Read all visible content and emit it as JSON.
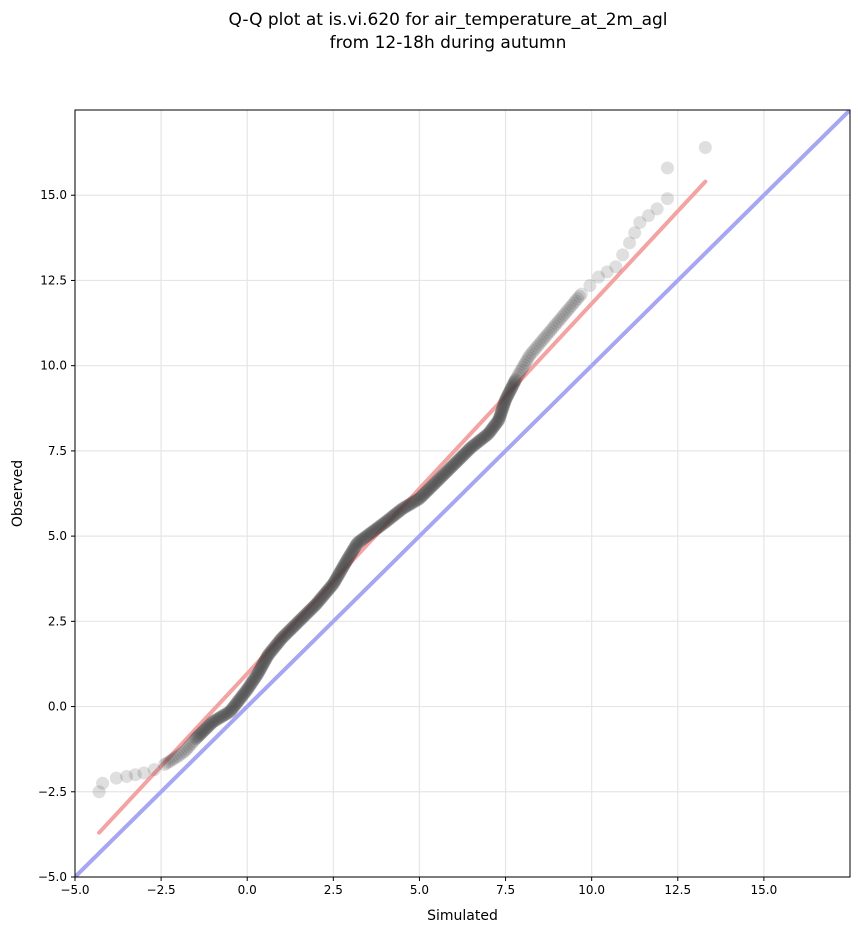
{
  "chart_data": {
    "type": "scatter",
    "title_lines": [
      "Q-Q plot at is.vi.620 for air_temperature_at_2m_agl",
      "from 12-18h during autumn"
    ],
    "xlabel": "Simulated",
    "ylabel": "Observed",
    "xlim": [
      -5.0,
      17.5
    ],
    "ylim": [
      -5.0,
      17.5
    ],
    "xticks": [
      -5.0,
      -2.5,
      0.0,
      2.5,
      5.0,
      7.5,
      10.0,
      12.5,
      15.0
    ],
    "xtick_labels": [
      "−5.0",
      "−2.5",
      "0.0",
      "2.5",
      "5.0",
      "7.5",
      "10.0",
      "12.5",
      "15.0"
    ],
    "yticks": [
      -5.0,
      -2.5,
      0.0,
      2.5,
      5.0,
      7.5,
      10.0,
      12.5,
      15.0
    ],
    "ytick_labels": [
      "−5.0",
      "−2.5",
      "0.0",
      "2.5",
      "5.0",
      "7.5",
      "10.0",
      "12.5",
      "15.0"
    ],
    "grid": true,
    "quantile_anchors": [
      [
        -4.3,
        -2.5
      ],
      [
        -4.2,
        -2.25
      ],
      [
        -3.8,
        -2.1
      ],
      [
        -3.5,
        -2.05
      ],
      [
        -3.0,
        -1.95
      ],
      [
        -2.7,
        -1.85
      ],
      [
        -2.4,
        -1.7
      ],
      [
        -2.0,
        -1.45
      ],
      [
        -1.8,
        -1.3
      ],
      [
        -1.5,
        -0.95
      ],
      [
        -1.0,
        -0.45
      ],
      [
        -0.5,
        -0.15
      ],
      [
        0.0,
        0.5
      ],
      [
        0.3,
        0.95
      ],
      [
        0.6,
        1.5
      ],
      [
        1.0,
        2.0
      ],
      [
        1.5,
        2.5
      ],
      [
        2.0,
        3.0
      ],
      [
        2.5,
        3.6
      ],
      [
        2.9,
        4.3
      ],
      [
        3.2,
        4.8
      ],
      [
        3.6,
        5.1
      ],
      [
        4.0,
        5.4
      ],
      [
        4.5,
        5.8
      ],
      [
        5.0,
        6.1
      ],
      [
        5.5,
        6.6
      ],
      [
        6.0,
        7.1
      ],
      [
        6.5,
        7.6
      ],
      [
        7.0,
        8.0
      ],
      [
        7.3,
        8.4
      ],
      [
        7.5,
        9.0
      ],
      [
        7.8,
        9.6
      ],
      [
        8.2,
        10.3
      ],
      [
        8.7,
        10.9
      ],
      [
        9.2,
        11.5
      ],
      [
        9.7,
        12.1
      ],
      [
        10.2,
        12.6
      ],
      [
        10.7,
        12.9
      ],
      [
        11.1,
        13.6
      ],
      [
        11.4,
        14.2
      ],
      [
        11.9,
        14.6
      ],
      [
        12.2,
        14.9
      ]
    ],
    "tail_points": [
      [
        12.2,
        15.8
      ],
      [
        13.3,
        16.4
      ]
    ],
    "point_color": "#404040",
    "fit_line": {
      "x": [
        -4.3,
        13.3
      ],
      "y": [
        -3.7,
        15.4
      ],
      "color": "#f4a3a3"
    },
    "identity_line": {
      "x": [
        -5.0,
        17.5
      ],
      "y": [
        -5.0,
        17.5
      ],
      "color": "#a6a6f2"
    }
  }
}
